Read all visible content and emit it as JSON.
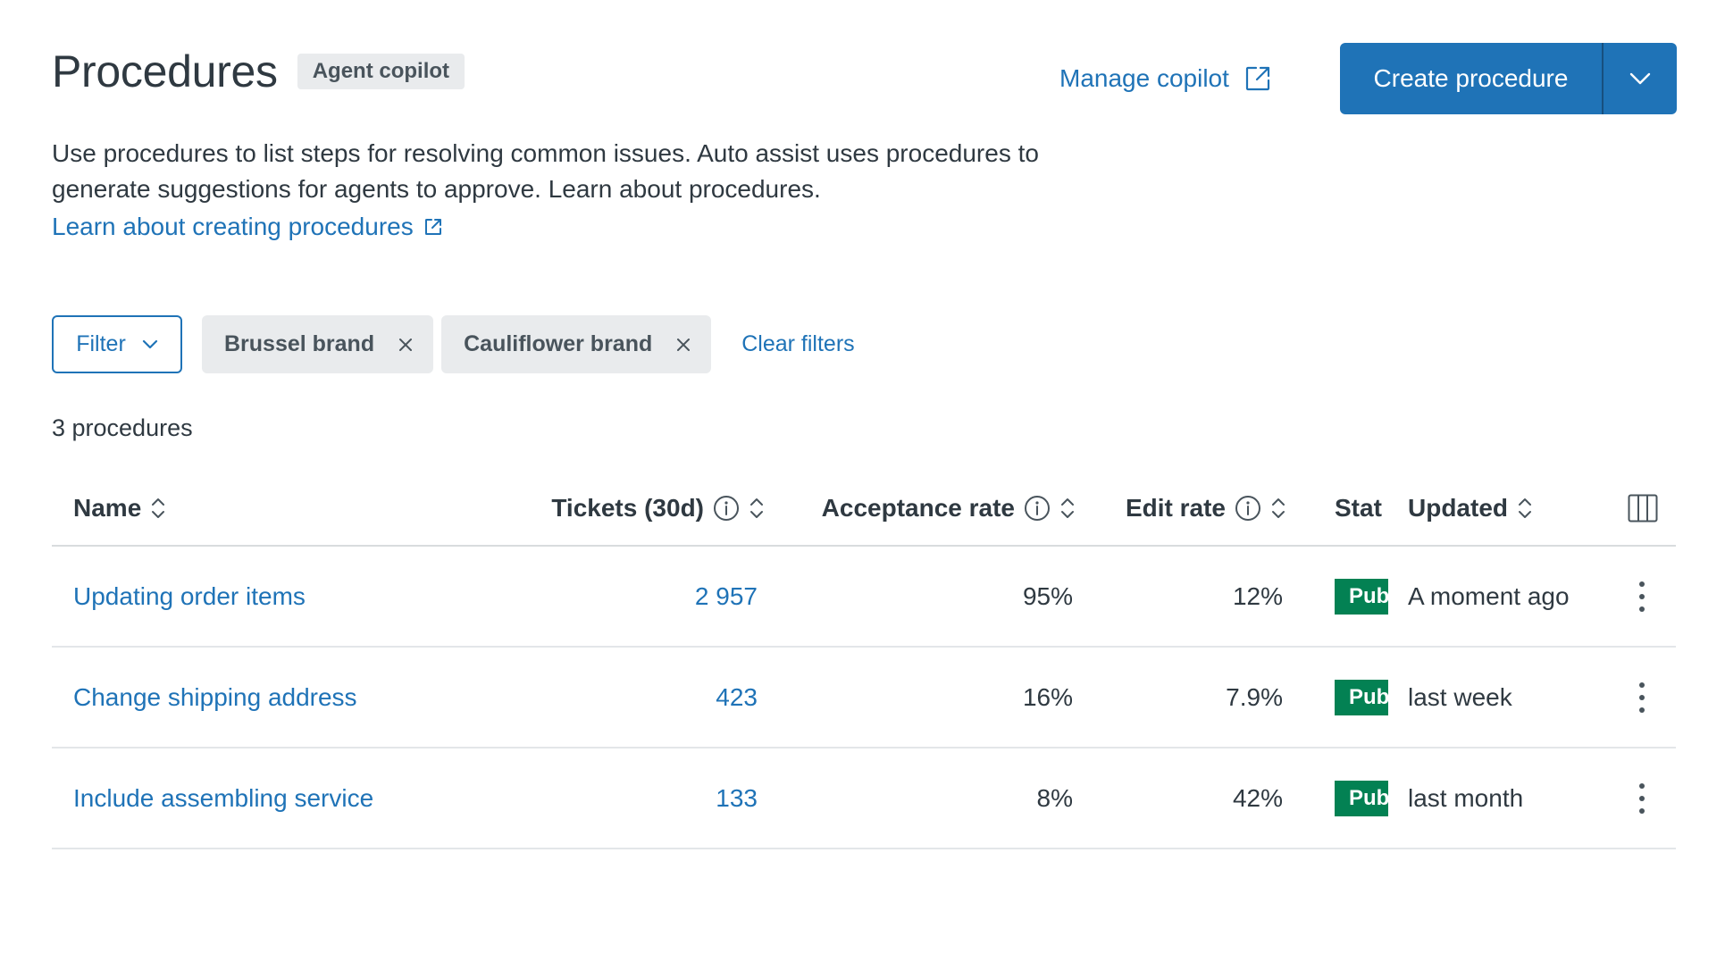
{
  "header": {
    "title": "Procedures",
    "badge": "Agent copilot",
    "manage_link": "Manage copilot",
    "create_button": "Create procedure"
  },
  "description": {
    "text": "Use procedures to list steps for resolving common issues. Auto assist uses procedures to generate suggestions for agents to approve. Learn about procedures.",
    "learn_link": "Learn about creating procedures"
  },
  "filters": {
    "filter_button": "Filter",
    "chips": [
      {
        "label": "Brussel brand"
      },
      {
        "label": "Cauliflower brand"
      }
    ],
    "clear_label": "Clear filters"
  },
  "count_label": "3 procedures",
  "table": {
    "columns": {
      "name": "Name",
      "tickets": "Tickets (30d)",
      "acceptance": "Acceptance rate",
      "edit": "Edit rate",
      "status": "Stat",
      "updated": "Updated"
    },
    "rows": [
      {
        "name": "Updating order items",
        "tickets": "2 957",
        "acceptance": "95%",
        "edit": "12%",
        "status": "Pub",
        "updated": "A moment ago"
      },
      {
        "name": "Change shipping address",
        "tickets": "423",
        "acceptance": "16%",
        "edit": "7.9%",
        "status": "Pub",
        "updated": "last week"
      },
      {
        "name": "Include assembling service",
        "tickets": "133",
        "acceptance": "8%",
        "edit": "42%",
        "status": "Pub",
        "updated": "last month"
      }
    ]
  },
  "icons": {
    "external_link": "external-link-icon",
    "chevron_down": "chevron-down-icon",
    "close": "close-icon",
    "info": "info-icon",
    "sort": "sort-icon",
    "columns": "columns-icon",
    "kebab": "overflow-menu-icon"
  },
  "colors": {
    "link": "#1f73b7",
    "primary": "#1f73b7",
    "published": "#038153",
    "chip_bg": "#e9ebed",
    "text": "#2f3941"
  }
}
